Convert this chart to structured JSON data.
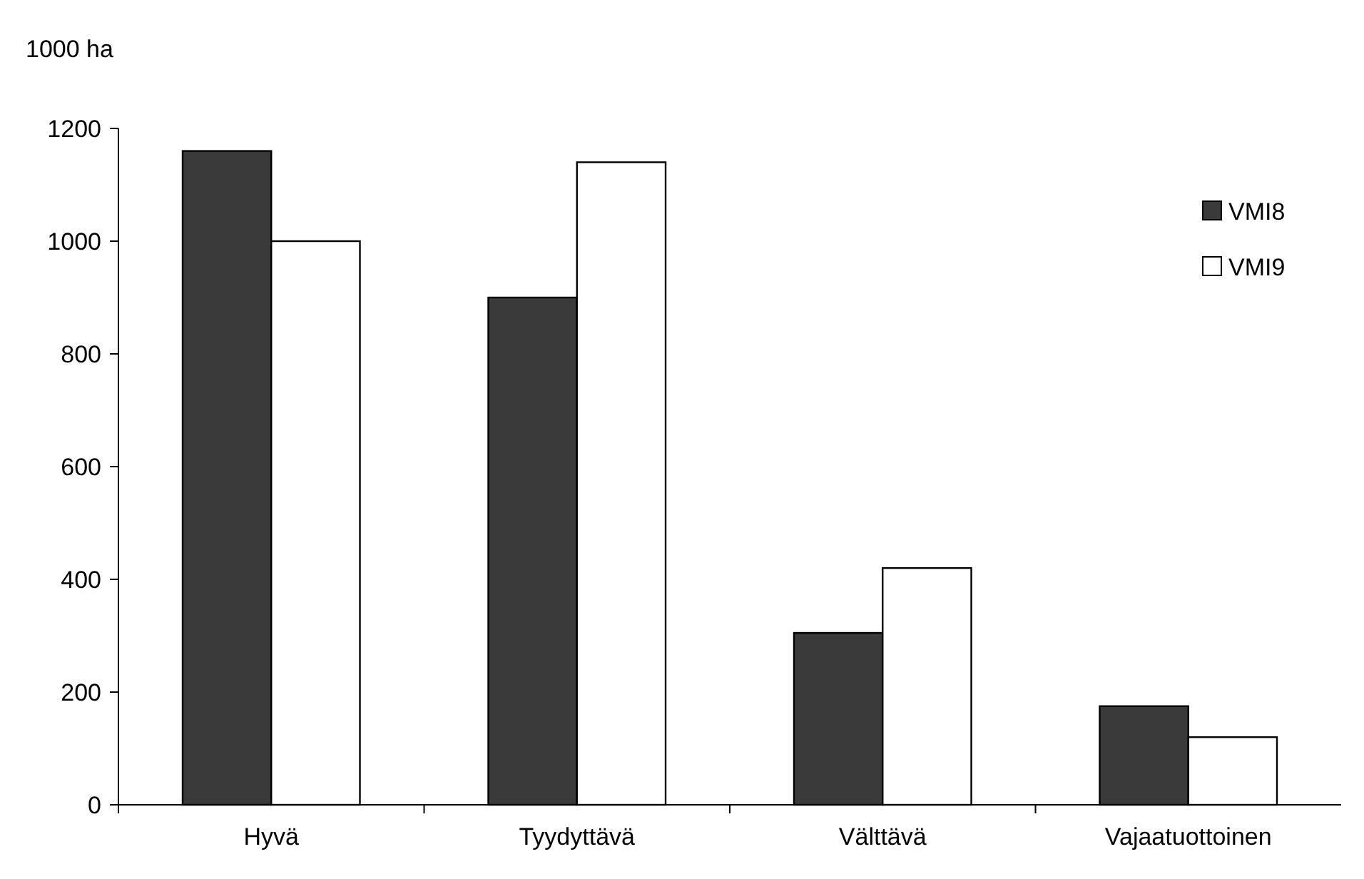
{
  "chart_data": {
    "type": "bar",
    "ylabel": "1000 ha",
    "categories": [
      "Hyvä",
      "Tyydyttävä",
      "Välttävä",
      "Vajaatuottoinen"
    ],
    "series": [
      {
        "name": "VMI8",
        "color": "#3a3a3a",
        "values": [
          1160,
          900,
          305,
          175
        ]
      },
      {
        "name": "VMI9",
        "color": "#ffffff",
        "values": [
          1000,
          1140,
          420,
          120
        ]
      }
    ],
    "ylim": [
      0,
      1200
    ],
    "yticks": [
      0,
      200,
      400,
      600,
      800,
      1000,
      1200
    ],
    "legend": "top right"
  }
}
